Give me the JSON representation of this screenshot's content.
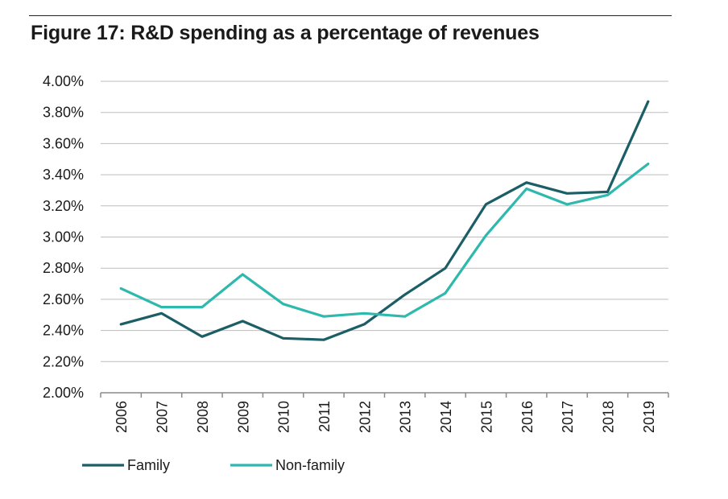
{
  "chart_data": {
    "type": "line",
    "title": "Figure 17: R&D spending as a percentage of revenues",
    "categories": [
      "2006",
      "2007",
      "2008",
      "2009",
      "2010",
      "2011",
      "2012",
      "2013",
      "2014",
      "2015",
      "2016",
      "2017",
      "2018",
      "2019"
    ],
    "series": [
      {
        "name": "Family",
        "color": "#1b5e66",
        "values": [
          2.44,
          2.51,
          2.36,
          2.46,
          2.35,
          2.34,
          2.44,
          2.63,
          2.8,
          3.21,
          3.35,
          3.28,
          3.29,
          3.87
        ]
      },
      {
        "name": "Non-family",
        "color": "#2fb8ad",
        "values": [
          2.67,
          2.55,
          2.55,
          2.76,
          2.57,
          2.49,
          2.51,
          2.49,
          2.64,
          3.01,
          3.31,
          3.21,
          3.27,
          3.47
        ]
      }
    ],
    "yticks": [
      "2.00%",
      "2.20%",
      "2.40%",
      "2.60%",
      "2.80%",
      "3.00%",
      "3.20%",
      "3.40%",
      "3.60%",
      "3.80%",
      "4.00%"
    ],
    "ylim": [
      2.0,
      4.0
    ],
    "grid": true,
    "legend": "bottom-left"
  }
}
